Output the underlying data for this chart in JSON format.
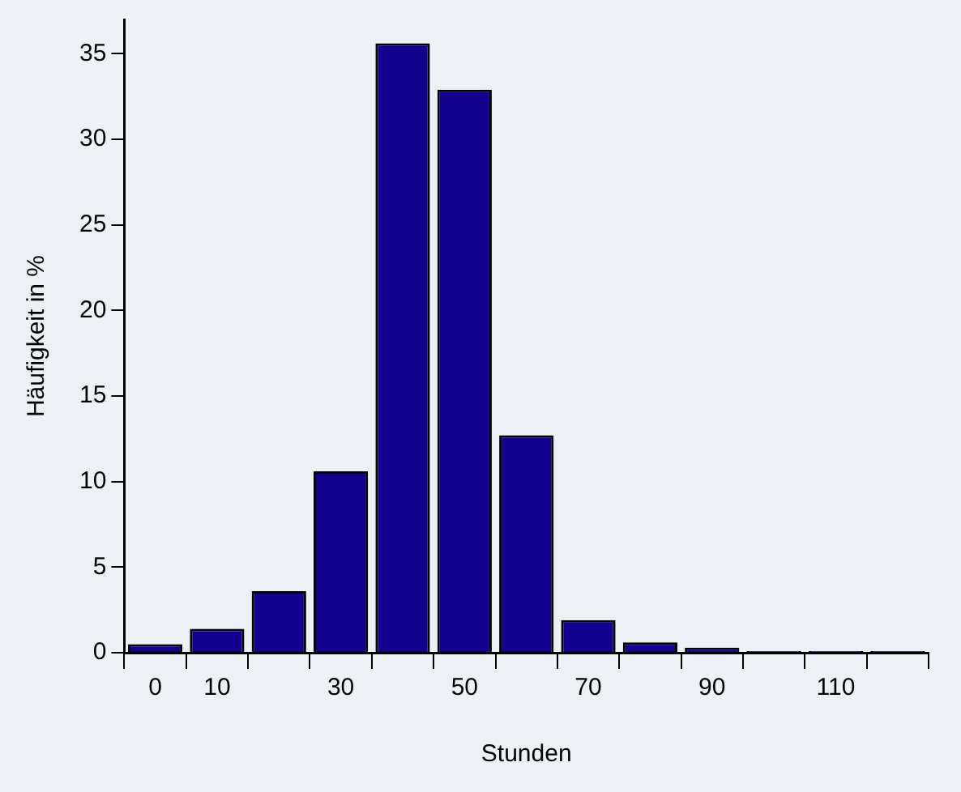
{
  "chart_data": {
    "type": "bar",
    "xlabel": "Stunden",
    "ylabel": "Häufigkeit in %",
    "categories": [
      "0",
      "10",
      null,
      "30",
      null,
      "50",
      null,
      "70",
      null,
      "90",
      null,
      "110",
      null
    ],
    "values": [
      0.5,
      1.4,
      3.6,
      10.6,
      35.6,
      32.9,
      12.7,
      1.9,
      0.6,
      0.3,
      0.1,
      0.1,
      0.1
    ],
    "color": "#12008f",
    "ylim": [
      0,
      37
    ],
    "yticks": [
      0,
      5,
      10,
      15,
      20,
      25,
      30,
      35
    ],
    "grid": false,
    "legend": false
  }
}
